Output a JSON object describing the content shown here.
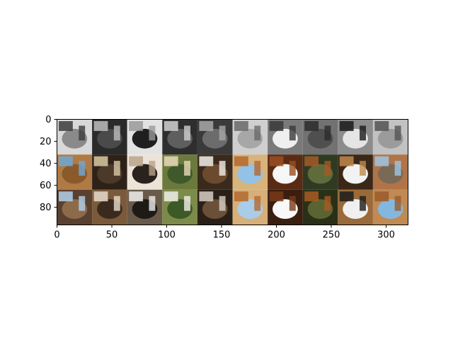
{
  "chart_data": {
    "type": "heatmap",
    "title": "",
    "xlabel": "",
    "ylabel": "",
    "xlim": [
      0,
      320
    ],
    "ylim": [
      96,
      0
    ],
    "x_ticks": [
      0,
      50,
      100,
      150,
      200,
      250,
      300
    ],
    "y_ticks": [
      0,
      20,
      40,
      60,
      80
    ],
    "x_tick_labels": [
      "0",
      "50",
      "100",
      "150",
      "200",
      "250",
      "300"
    ],
    "y_tick_labels": [
      "0",
      "20",
      "40",
      "60",
      "80"
    ],
    "grid": false,
    "legend": "none",
    "image_grid": {
      "rows": 3,
      "cols": 10,
      "tile_size": 32,
      "row_descriptions": [
        "grayscale",
        "color",
        "color-augmented"
      ]
    },
    "tiles": [
      {
        "row": 0,
        "col": 0,
        "colors": [
          "#8a8a8a",
          "#3c3c3c",
          "#d8d8d8"
        ]
      },
      {
        "row": 0,
        "col": 1,
        "colors": [
          "#4a4a4a",
          "#bdbdbd",
          "#2a2a2a"
        ]
      },
      {
        "row": 0,
        "col": 2,
        "colors": [
          "#1f1f1f",
          "#9a9a9a",
          "#e2e2e2"
        ]
      },
      {
        "row": 0,
        "col": 3,
        "colors": [
          "#5e5e5e",
          "#d0d0d0",
          "#2e2e2e"
        ]
      },
      {
        "row": 0,
        "col": 4,
        "colors": [
          "#6c6c6c",
          "#a8a8a8",
          "#3a3a3a"
        ]
      },
      {
        "row": 0,
        "col": 5,
        "colors": [
          "#a7a7a7",
          "#6a6a6a",
          "#cfcfcf"
        ]
      },
      {
        "row": 0,
        "col": 6,
        "colors": [
          "#efefef",
          "#3a3a3a",
          "#7a7a7a"
        ]
      },
      {
        "row": 0,
        "col": 7,
        "colors": [
          "#4f4f4f",
          "#2b2b2b",
          "#727272"
        ]
      },
      {
        "row": 0,
        "col": 8,
        "colors": [
          "#e5e5e5",
          "#1a1a1a",
          "#8c8c8c"
        ]
      },
      {
        "row": 0,
        "col": 9,
        "colors": [
          "#9b9b9b",
          "#545454",
          "#c2c2c2"
        ]
      },
      {
        "row": 1,
        "col": 0,
        "colors": [
          "#8b5a2b",
          "#6fa8d6",
          "#b07a45"
        ]
      },
      {
        "row": 1,
        "col": 1,
        "colors": [
          "#4b3a2a",
          "#d8c9a6",
          "#2e2218"
        ]
      },
      {
        "row": 1,
        "col": 2,
        "colors": [
          "#2a221c",
          "#b8a489",
          "#ece4d8"
        ]
      },
      {
        "row": 1,
        "col": 3,
        "colors": [
          "#3f5a2a",
          "#e7d9b8",
          "#6b7a3c"
        ]
      },
      {
        "row": 1,
        "col": 4,
        "colors": [
          "#6b4a2e",
          "#f2efe8",
          "#3a2a1c"
        ]
      },
      {
        "row": 1,
        "col": 5,
        "colors": [
          "#93c2e6",
          "#b5672d",
          "#d8b47d"
        ]
      },
      {
        "row": 1,
        "col": 6,
        "colors": [
          "#f6f6f6",
          "#9a4f22",
          "#5a2b14"
        ]
      },
      {
        "row": 1,
        "col": 7,
        "colors": [
          "#5f6b3a",
          "#a65a26",
          "#2f3a22"
        ]
      },
      {
        "row": 1,
        "col": 8,
        "colors": [
          "#f2f2f2",
          "#c08a4a",
          "#3a2718"
        ]
      },
      {
        "row": 1,
        "col": 9,
        "colors": [
          "#7a6a55",
          "#9fc6e4",
          "#b07448"
        ]
      },
      {
        "row": 2,
        "col": 0,
        "colors": [
          "#8d6a4a",
          "#b3d2ea",
          "#5a4030"
        ]
      },
      {
        "row": 2,
        "col": 1,
        "colors": [
          "#3a2a1e",
          "#e8dccc",
          "#7a5a3a"
        ]
      },
      {
        "row": 2,
        "col": 2,
        "colors": [
          "#1e1a16",
          "#eeeeee",
          "#6a5a4a"
        ]
      },
      {
        "row": 2,
        "col": 3,
        "colors": [
          "#3d5a26",
          "#f0efe8",
          "#7c8a4a"
        ]
      },
      {
        "row": 2,
        "col": 4,
        "colors": [
          "#6a5038",
          "#d8d0c4",
          "#2a2018"
        ]
      },
      {
        "row": 2,
        "col": 5,
        "colors": [
          "#a9cde8",
          "#b36a30",
          "#d6b07a"
        ]
      },
      {
        "row": 2,
        "col": 6,
        "colors": [
          "#f8f8f8",
          "#7a3a1a",
          "#3a1e10"
        ]
      },
      {
        "row": 2,
        "col": 7,
        "colors": [
          "#5a6432",
          "#a95a22",
          "#2a3018"
        ]
      },
      {
        "row": 2,
        "col": 8,
        "colors": [
          "#f0f0f0",
          "#1c1c1c",
          "#9a6a3a"
        ]
      },
      {
        "row": 2,
        "col": 9,
        "colors": [
          "#84b7e0",
          "#9a5a2a",
          "#c08a52"
        ]
      }
    ],
    "colors": {
      "axis": "#000000",
      "background": "#ffffff"
    }
  }
}
